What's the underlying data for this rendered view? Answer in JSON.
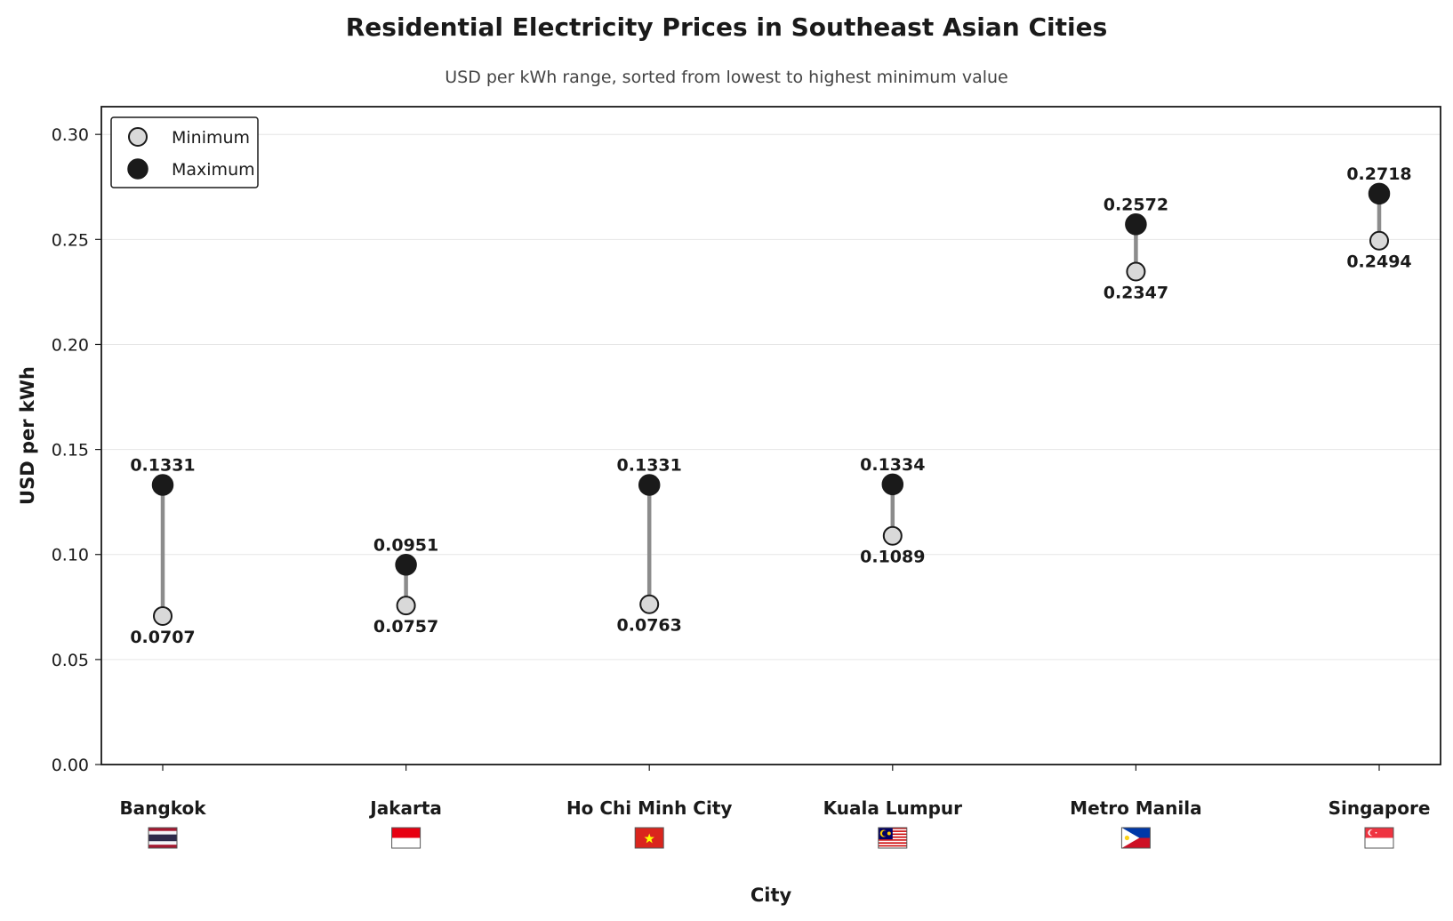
{
  "chart_data": {
    "type": "dumbbell",
    "title": "Residential Electricity Prices in Southeast Asian Cities",
    "subtitle": "USD per kWh range, sorted from lowest to highest minimum value",
    "xlabel": "City",
    "ylabel": "USD per kWh",
    "ylim": [
      0.0,
      0.3132
    ],
    "yticks": [
      "0.00",
      "0.05",
      "0.10",
      "0.15",
      "0.20",
      "0.25",
      "0.30"
    ],
    "grid": true,
    "legend_position": "top-left",
    "categories": [
      "Bangkok",
      "Jakarta",
      "Ho Chi Minh City",
      "Kuala Lumpur",
      "Metro Manila",
      "Singapore"
    ],
    "flags": [
      "thailand-flag",
      "indonesia-flag",
      "vietnam-flag",
      "malaysia-flag",
      "philippines-flag",
      "singapore-flag"
    ],
    "series": [
      {
        "name": "Minimum",
        "values": [
          0.0707,
          0.0757,
          0.0763,
          0.1089,
          0.2347,
          0.2494
        ],
        "labels": [
          "0.0707",
          "0.0757",
          "0.0763",
          "0.1089",
          "0.2347",
          "0.2494"
        ],
        "color": "#d9d9d9"
      },
      {
        "name": "Maximum",
        "values": [
          0.1331,
          0.0951,
          0.1331,
          0.1334,
          0.2572,
          0.2718
        ],
        "labels": [
          "0.1331",
          "0.0951",
          "0.1331",
          "0.1334",
          "0.2572",
          "0.2718"
        ],
        "color": "#1a1a1a"
      }
    ],
    "connector_color": "#8c8c8c"
  }
}
